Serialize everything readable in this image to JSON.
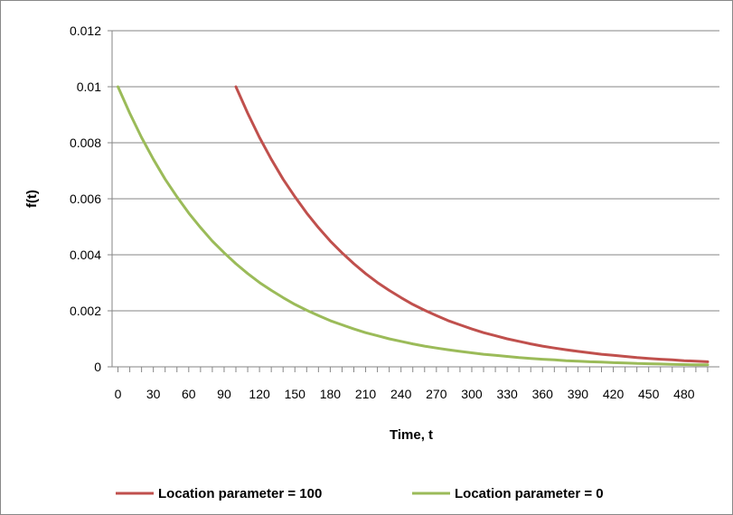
{
  "chart_data": {
    "type": "line",
    "title": "",
    "xlabel": "Time, t",
    "ylabel": "f(t)",
    "xlim": [
      -5,
      510
    ],
    "ylim": [
      0,
      0.012
    ],
    "x_ticks": [
      0,
      30,
      60,
      90,
      120,
      150,
      180,
      210,
      240,
      270,
      300,
      330,
      360,
      390,
      420,
      450,
      480
    ],
    "y_ticks": [
      "0",
      "0.002",
      "0.004",
      "0.006",
      "0.008",
      "0.01",
      "0.012"
    ],
    "grid": "horizontal",
    "legend_position": "bottom",
    "series": [
      {
        "name": "Location parameter = 100",
        "color": "#c0504d",
        "x": [
          100,
          110,
          120,
          130,
          140,
          150,
          160,
          170,
          180,
          190,
          200,
          210,
          220,
          230,
          240,
          250,
          260,
          270,
          280,
          290,
          300,
          310,
          320,
          330,
          340,
          350,
          360,
          370,
          380,
          390,
          400,
          410,
          420,
          430,
          440,
          450,
          460,
          470,
          480,
          490,
          500
        ],
        "y": [
          0.01,
          0.00905,
          0.00819,
          0.00741,
          0.0067,
          0.00607,
          0.00549,
          0.00497,
          0.00449,
          0.00407,
          0.00368,
          0.00333,
          0.00301,
          0.00273,
          0.00247,
          0.00223,
          0.00202,
          0.00183,
          0.00165,
          0.0015,
          0.00135,
          0.00122,
          0.00111,
          0.001,
          0.00091,
          0.00082,
          0.00074,
          0.00067,
          0.00061,
          0.00055,
          0.0005,
          0.00045,
          0.00041,
          0.00037,
          0.00033,
          0.0003,
          0.00027,
          0.00025,
          0.00022,
          0.0002,
          0.00018
        ]
      },
      {
        "name": "Location parameter = 0",
        "color": "#9bbb59",
        "x": [
          0,
          10,
          20,
          30,
          40,
          50,
          60,
          70,
          80,
          90,
          100,
          110,
          120,
          130,
          140,
          150,
          160,
          170,
          180,
          190,
          200,
          210,
          220,
          230,
          240,
          250,
          260,
          270,
          280,
          290,
          300,
          310,
          320,
          330,
          340,
          350,
          360,
          370,
          380,
          390,
          400,
          410,
          420,
          430,
          440,
          450,
          460,
          470,
          480,
          490,
          500
        ],
        "y": [
          0.01,
          0.00905,
          0.00819,
          0.00741,
          0.0067,
          0.00607,
          0.00549,
          0.00497,
          0.00449,
          0.00407,
          0.00368,
          0.00333,
          0.00301,
          0.00273,
          0.00247,
          0.00223,
          0.00202,
          0.00183,
          0.00165,
          0.0015,
          0.00135,
          0.00122,
          0.00111,
          0.001,
          0.00091,
          0.00082,
          0.00074,
          0.00067,
          0.00061,
          0.00055,
          0.0005,
          0.00045,
          0.00041,
          0.00037,
          0.00033,
          0.0003,
          0.00027,
          0.00025,
          0.00022,
          0.0002,
          0.00018,
          0.00017,
          0.00015,
          0.00014,
          0.00012,
          0.00011,
          0.0001,
          9e-05,
          8e-05,
          7e-05,
          7e-05
        ]
      }
    ]
  }
}
